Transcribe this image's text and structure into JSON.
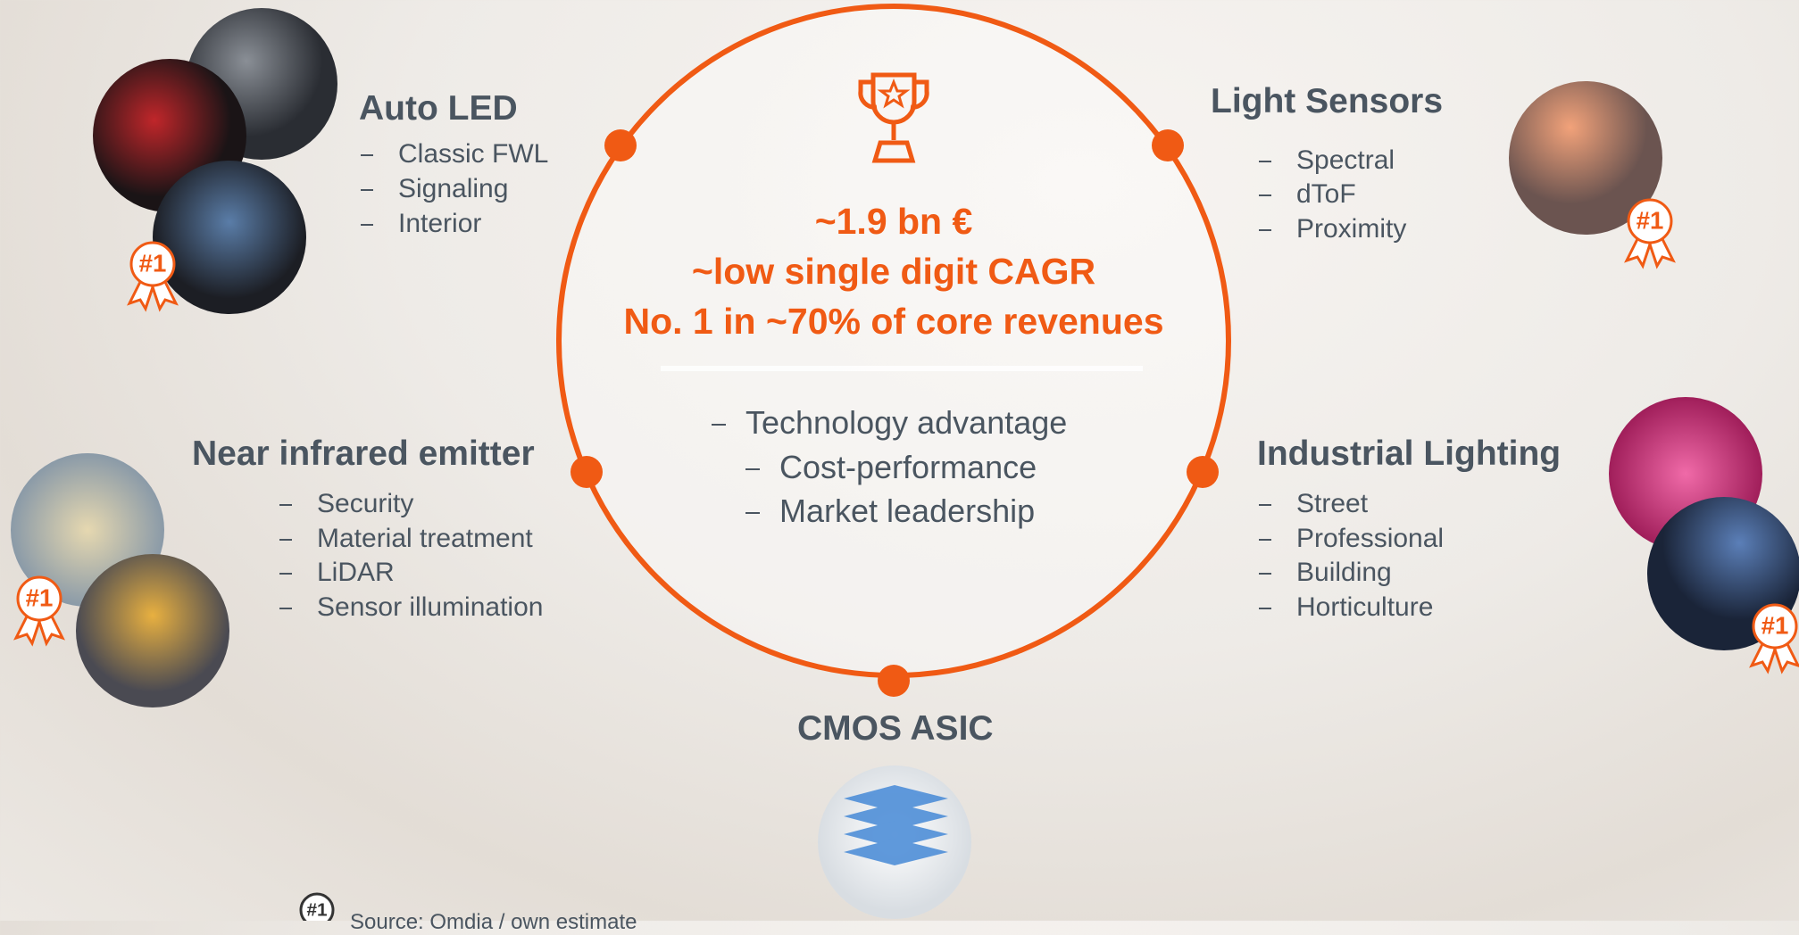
{
  "center": {
    "headline": [
      "~1.9 bn €",
      "~low single digit CAGR",
      "No. 1 in ~70% of core revenues"
    ],
    "bullets": [
      "Technology advantage",
      "Cost-performance",
      "Market leadership"
    ]
  },
  "segments": [
    {
      "title": "Auto LED",
      "items": [
        "Classic FWL",
        "Signaling",
        "Interior"
      ],
      "badge": "#1"
    },
    {
      "title": "Light Sensors",
      "items": [
        "Spectral",
        "dToF",
        "Proximity"
      ],
      "badge": "#1"
    },
    {
      "title": "Near infrared emitter",
      "items": [
        "Security",
        "Material treatment",
        "LiDAR",
        "Sensor illumination"
      ],
      "badge": "#1"
    },
    {
      "title": "Industrial Lighting",
      "items": [
        "Street",
        "Professional",
        "Building",
        "Horticulture"
      ],
      "badge": "#1"
    },
    {
      "title": "CMOS ASIC",
      "items": []
    }
  ],
  "footnote": {
    "badge": "#1",
    "text": "Source: Omdia / own estimate"
  }
}
